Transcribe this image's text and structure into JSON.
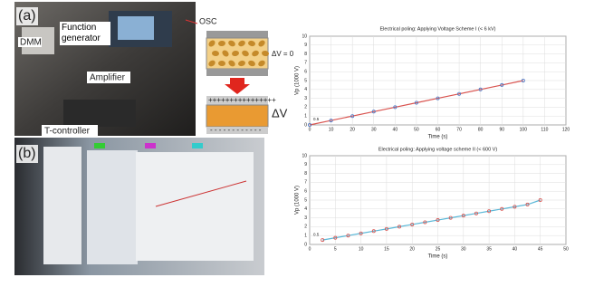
{
  "panel_labels": {
    "a": "(a)",
    "b": "(b)"
  },
  "photo_labels": {
    "dmm": "DMM",
    "function_generator": "Function generator",
    "amplifier": "Amplifier",
    "t_controller": "T-controller",
    "osc": "OSC"
  },
  "diagram": {
    "delta_v_zero": "ΔV = 0",
    "delta_v": "ΔV",
    "plus_row": "++++++++++++++++",
    "minus_row": "- - - - - - - - - - - -"
  },
  "chart_data": [
    {
      "type": "line",
      "title": "Electrical poling: Applying Voltage Scheme I (< 6 kV)",
      "xlabel": "Time (s)",
      "ylabel": "Vp (1000 V)",
      "x": [
        0,
        10,
        20,
        30,
        40,
        50,
        60,
        70,
        80,
        90,
        100
      ],
      "values": [
        0,
        0.5,
        1,
        1.5,
        2,
        2.5,
        3,
        3.5,
        4,
        4.5,
        5
      ],
      "color": "#d9534f",
      "marker_color": "#4a78c8",
      "annotation": "0.5",
      "xlim": [
        0,
        120
      ],
      "xticks": [
        0,
        10,
        20,
        30,
        40,
        50,
        60,
        70,
        80,
        90,
        100,
        110,
        120
      ],
      "ylim": [
        0,
        10
      ],
      "yticks": [
        0,
        1,
        2,
        3,
        4,
        5,
        6,
        7,
        8,
        9,
        10
      ],
      "grid": true
    },
    {
      "type": "line",
      "title": "Electrical poling: Applying voltage scheme II (< 600 V)",
      "xlabel": "Time (s)",
      "ylabel": "Vp (1000 V)",
      "x": [
        2.5,
        5,
        7.5,
        10,
        12.5,
        15,
        17.5,
        20,
        22.5,
        25,
        27.5,
        30,
        32.5,
        35,
        37.5,
        40,
        42.5,
        45
      ],
      "values": [
        0.5,
        0.75,
        1,
        1.25,
        1.5,
        1.75,
        2,
        2.25,
        2.5,
        2.75,
        3,
        3.25,
        3.5,
        3.75,
        4,
        4.25,
        4.5,
        5
      ],
      "color": "#5bb8d8",
      "marker_color": "#d9534f",
      "annotation": "0.5",
      "xlim": [
        0,
        50
      ],
      "xticks": [
        0,
        5,
        10,
        15,
        20,
        25,
        30,
        35,
        40,
        45,
        50
      ],
      "ylim": [
        0,
        10
      ],
      "yticks": [
        0,
        1,
        2,
        3,
        4,
        5,
        6,
        7,
        8,
        9,
        10
      ],
      "grid": true
    }
  ]
}
